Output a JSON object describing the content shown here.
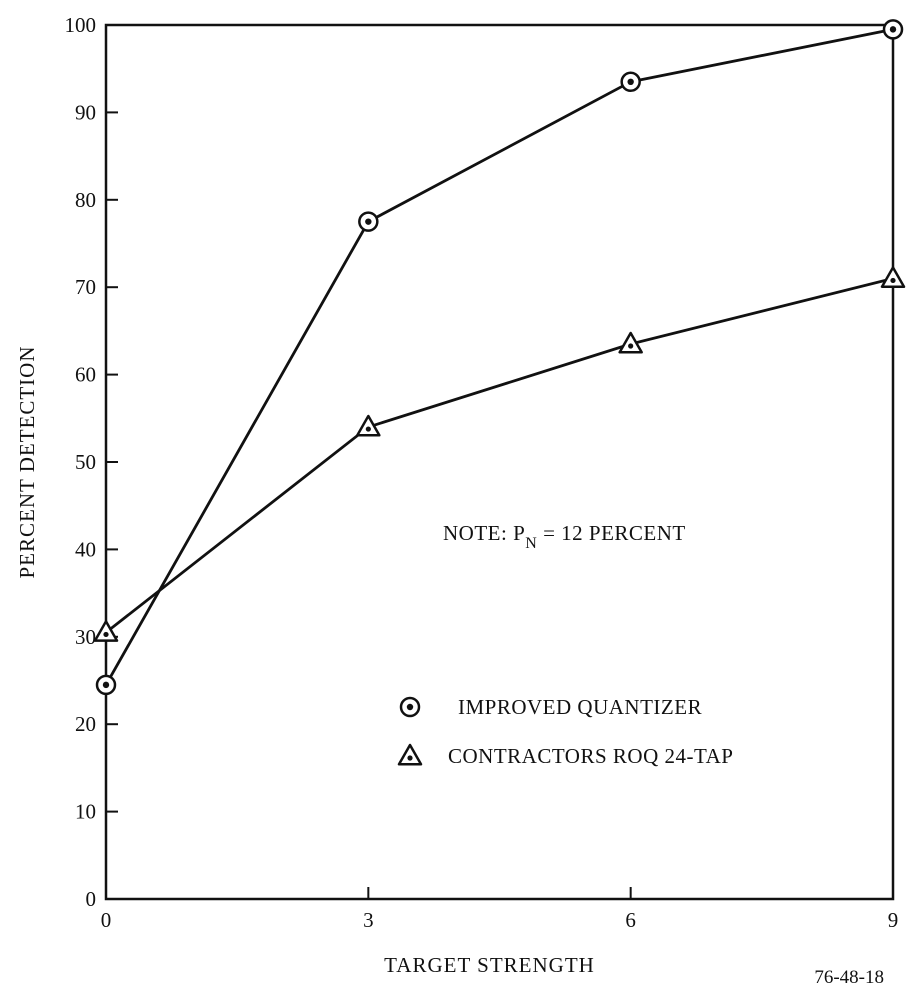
{
  "chart_data": {
    "type": "line",
    "title": "",
    "xlabel": "TARGET STRENGTH",
    "ylabel": "PERCENT DETECTION",
    "xlim": [
      0,
      9
    ],
    "ylim": [
      0,
      100
    ],
    "x_ticks": [
      "0",
      "3",
      "6",
      "9"
    ],
    "y_ticks": [
      "0",
      "10",
      "20",
      "30",
      "40",
      "50",
      "60",
      "70",
      "80",
      "90",
      "100"
    ],
    "x": [
      0,
      3,
      6,
      9
    ],
    "series": [
      {
        "name": "IMPROVED QUANTIZER",
        "marker": "circle-dot",
        "values": [
          24.5,
          77.5,
          93.5,
          99.5
        ]
      },
      {
        "name": "CONTRACTORS ROQ 24-TAP",
        "marker": "triangle-dot",
        "values": [
          30.5,
          54,
          63.5,
          71
        ]
      }
    ],
    "grid": false,
    "legend_position": "lower-right"
  },
  "note": {
    "prefix": "NOTE:  P",
    "subscript": "N",
    "suffix": " = 12 PERCENT"
  },
  "figure_id": "76-48-18",
  "colors": {
    "ink": "#111111",
    "background": "#ffffff"
  }
}
